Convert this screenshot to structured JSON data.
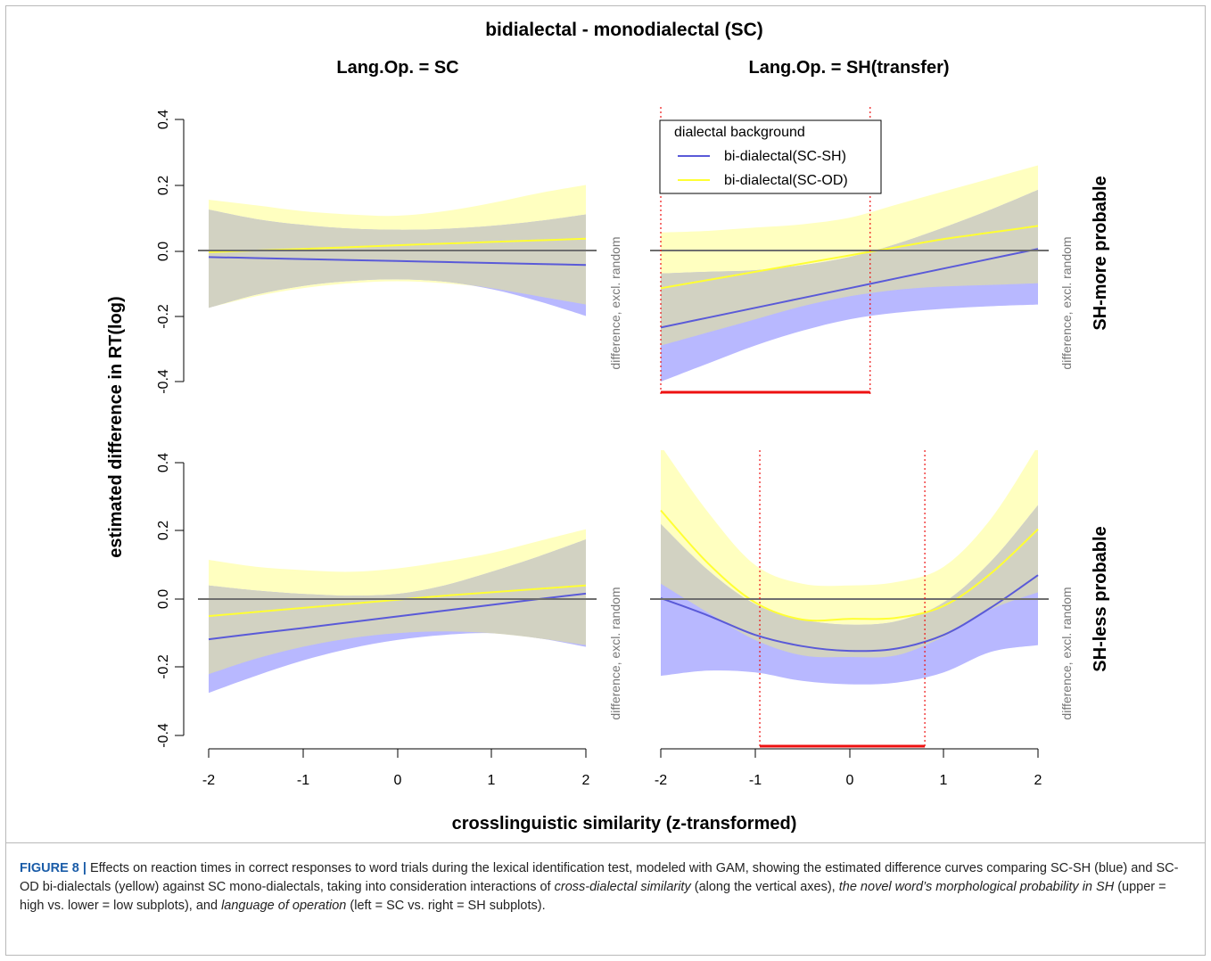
{
  "chart_data": {
    "type": "line",
    "title": "bidialectal - monodialectal (SC)",
    "xlabel": "crosslinguistic similarity (z-transformed)",
    "ylabel": "estimated difference in RT(log)",
    "xlim": [
      -2,
      2
    ],
    "ylim": [
      -0.4,
      0.4
    ],
    "xticks": [
      "-2",
      "-1",
      "0",
      "1",
      "2"
    ],
    "yticks": [
      "-0.4",
      "-0.2",
      "0.0",
      "0.2",
      "0.4"
    ],
    "column_titles": [
      "Lang.Op. = SC",
      "Lang.Op. = SH(transfer)"
    ],
    "row_labels": [
      "SH-more probable",
      "SH-less probable"
    ],
    "panel_side_label": "difference, excl. random",
    "legend": {
      "title": "dialectal background",
      "placement": "top-center",
      "entries": [
        {
          "label": "bi-dialectal(SC-SH)",
          "color": "#5a5ad8"
        },
        {
          "label": "bi-dialectal(SC-OD)",
          "color": "#ffff33"
        }
      ]
    },
    "colors": {
      "blue_line": "#5a5ad8",
      "yellow_line": "#ffff33",
      "blue_band": "#b8b8ff",
      "yellow_band": "#ffffc0",
      "overlap_band": "#d2d2c2",
      "zero_line": "#6e6e6e",
      "significance": "#ee1111"
    },
    "x": [
      -2,
      -1.5,
      -1,
      -0.5,
      0,
      0.5,
      1,
      1.5,
      2
    ],
    "panels": [
      {
        "row": 0,
        "col": 0,
        "series": [
          {
            "name": "bi-dialectal(SC-SH)",
            "values": [
              -0.02,
              -0.023,
              -0.026,
              -0.029,
              -0.032,
              -0.035,
              -0.038,
              -0.041,
              -0.044
            ],
            "lower": [
              -0.175,
              -0.135,
              -0.108,
              -0.093,
              -0.088,
              -0.095,
              -0.118,
              -0.155,
              -0.2
            ],
            "upper": [
              0.125,
              0.096,
              0.078,
              0.067,
              0.063,
              0.066,
              0.075,
              0.09,
              0.11
            ]
          },
          {
            "name": "bi-dialectal(SC-OD)",
            "values": [
              -0.005,
              0.0,
              0.005,
              0.01,
              0.016,
              0.021,
              0.026,
              0.031,
              0.036
            ],
            "lower": [
              -0.175,
              -0.14,
              -0.115,
              -0.1,
              -0.094,
              -0.1,
              -0.115,
              -0.14,
              -0.165
            ],
            "upper": [
              0.155,
              0.138,
              0.12,
              0.11,
              0.106,
              0.12,
              0.145,
              0.175,
              0.2
            ]
          }
        ],
        "significance": []
      },
      {
        "row": 0,
        "col": 1,
        "series": [
          {
            "name": "bi-dialectal(SC-SH)",
            "values": [
              -0.235,
              -0.205,
              -0.175,
              -0.145,
              -0.115,
              -0.085,
              -0.055,
              -0.025,
              0.005
            ],
            "lower": [
              -0.4,
              -0.345,
              -0.29,
              -0.245,
              -0.21,
              -0.19,
              -0.178,
              -0.17,
              -0.165
            ],
            "upper": [
              -0.07,
              -0.065,
              -0.06,
              -0.045,
              -0.02,
              0.02,
              0.07,
              0.125,
              0.185
            ]
          },
          {
            "name": "bi-dialectal(SC-OD)",
            "values": [
              -0.115,
              -0.09,
              -0.065,
              -0.04,
              -0.015,
              0.01,
              0.035,
              0.055,
              0.075
            ],
            "lower": [
              -0.29,
              -0.25,
              -0.21,
              -0.17,
              -0.14,
              -0.12,
              -0.11,
              -0.105,
              -0.1
            ],
            "upper": [
              0.055,
              0.06,
              0.07,
              0.08,
              0.1,
              0.14,
              0.18,
              0.22,
              0.26
            ]
          }
        ],
        "significance": [
          [
            -2,
            0.22
          ]
        ]
      },
      {
        "row": 1,
        "col": 0,
        "series": [
          {
            "name": "bi-dialectal(SC-SH)",
            "values": [
              -0.118,
              -0.101,
              -0.085,
              -0.068,
              -0.051,
              -0.034,
              -0.017,
              0.0,
              0.016
            ],
            "lower": [
              -0.275,
              -0.225,
              -0.18,
              -0.145,
              -0.12,
              -0.105,
              -0.1,
              -0.115,
              -0.14
            ],
            "upper": [
              0.04,
              0.025,
              0.015,
              0.01,
              0.015,
              0.04,
              0.08,
              0.125,
              0.175
            ]
          },
          {
            "name": "bi-dialectal(SC-OD)",
            "values": [
              -0.05,
              -0.038,
              -0.026,
              -0.014,
              -0.002,
              0.01,
              0.02,
              0.03,
              0.04
            ],
            "lower": [
              -0.22,
              -0.175,
              -0.14,
              -0.115,
              -0.1,
              -0.095,
              -0.1,
              -0.115,
              -0.135
            ],
            "upper": [
              0.115,
              0.095,
              0.085,
              0.08,
              0.09,
              0.11,
              0.135,
              0.17,
              0.205
            ]
          }
        ],
        "significance": []
      },
      {
        "row": 1,
        "col": 1,
        "series": [
          {
            "name": "bi-dialectal(SC-SH)",
            "values": [
              0.003,
              -0.048,
              -0.105,
              -0.138,
              -0.152,
              -0.145,
              -0.105,
              -0.025,
              0.07
            ],
            "lower": [
              -0.225,
              -0.21,
              -0.215,
              -0.24,
              -0.25,
              -0.245,
              -0.215,
              -0.155,
              -0.135
            ],
            "upper": [
              0.22,
              0.085,
              -0.015,
              -0.06,
              -0.075,
              -0.065,
              -0.01,
              0.11,
              0.275
            ]
          },
          {
            "name": "bi-dialectal(SC-OD)",
            "values": [
              0.26,
              0.105,
              -0.01,
              -0.06,
              -0.058,
              -0.055,
              -0.02,
              0.075,
              0.205
            ],
            "lower": [
              0.045,
              -0.04,
              -0.12,
              -0.165,
              -0.17,
              -0.165,
              -0.11,
              -0.03,
              0.02
            ],
            "upper": [
              0.45,
              0.255,
              0.1,
              0.045,
              0.04,
              0.05,
              0.095,
              0.235,
              0.45
            ]
          }
        ],
        "significance": [
          [
            -0.95,
            0.8
          ]
        ]
      }
    ]
  },
  "caption": {
    "label": "FIGURE 8",
    "sep": "|",
    "t1": " Effects on reaction times in correct responses to word trials during the lexical identification test, modeled with GAM, showing the estimated difference curves comparing SC-SH (blue) and SC-OD bi-dialectals (yellow) against SC mono-dialectals, taking into consideration interactions of ",
    "i1": "cross-dialectal similarity",
    "t2": " (along the vertical axes), ",
    "i2": "the novel word’s morphological probability in SH",
    "t3": " (upper = high vs. lower = low subplots), and ",
    "i3": "language of operation",
    "t4": " (left = SC vs. right = SH subplots)."
  }
}
